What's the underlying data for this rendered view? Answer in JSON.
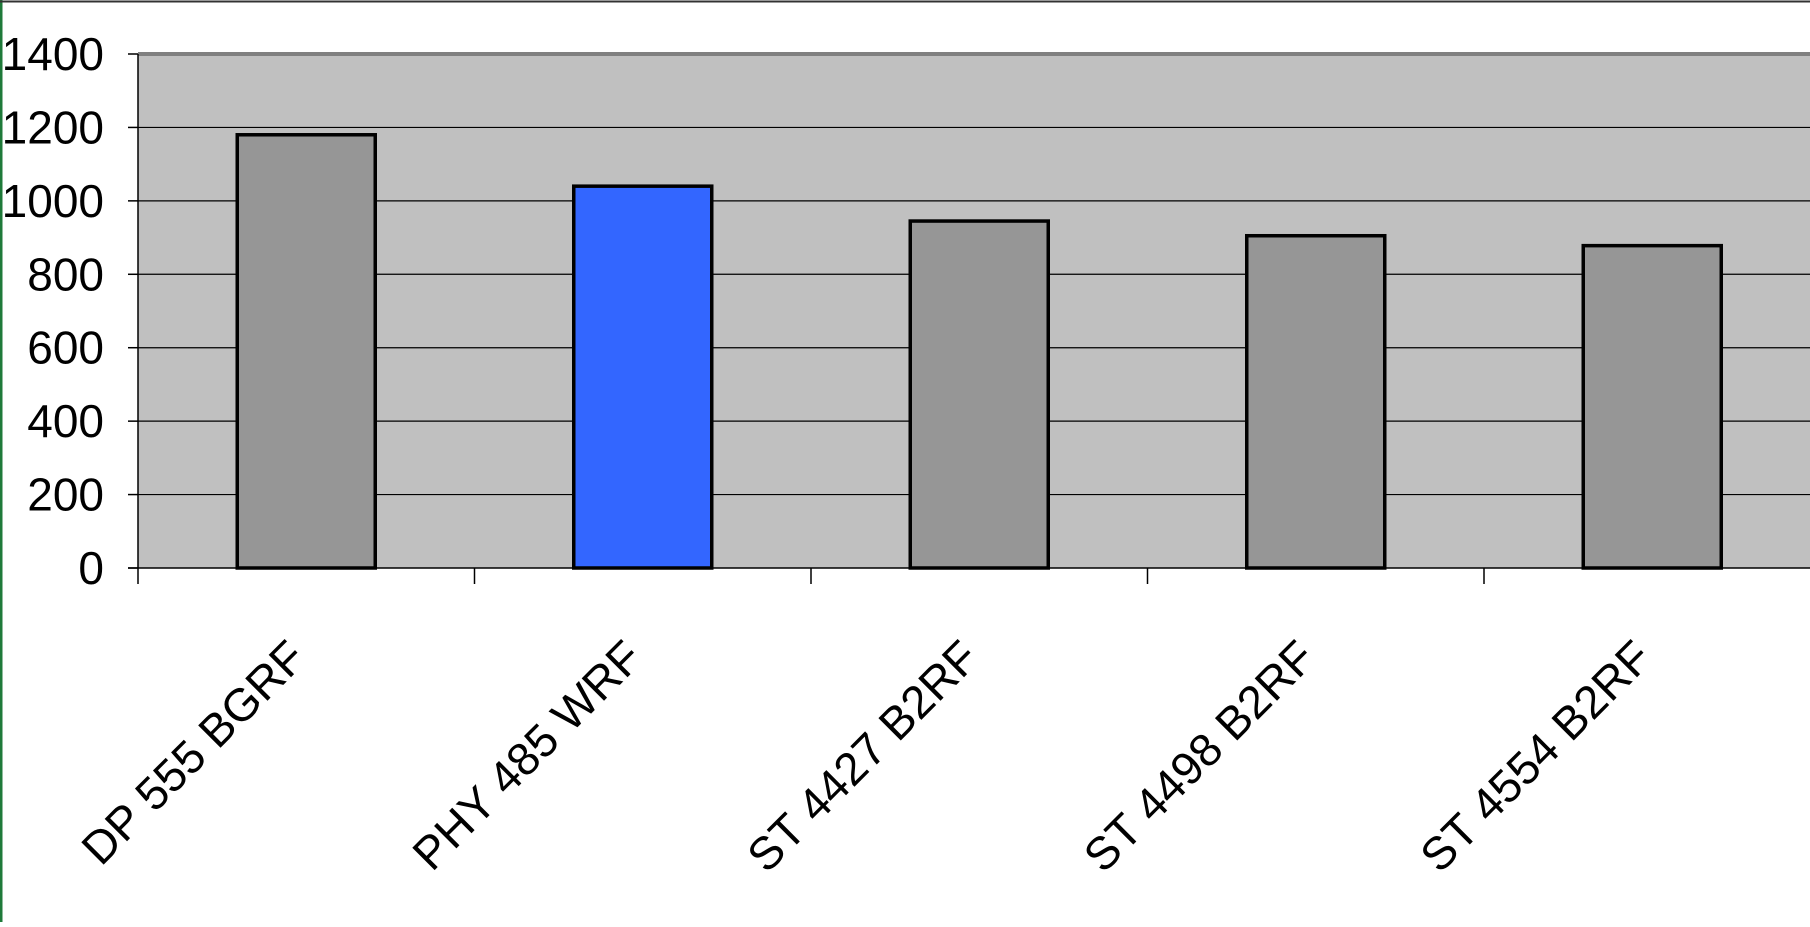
{
  "colors": {
    "plot_background": "#c0c0c0",
    "default_bar": "#969696",
    "highlight_bar": "#3366ff",
    "bar_outline": "#000000",
    "gridline": "#000000",
    "frame_green": "#1f7a3a"
  },
  "chart_data": {
    "type": "bar",
    "categories": [
      "DP 555 BGRF",
      "PHY 485 WRF",
      "ST 4427 B2RF",
      "ST 4498 B2RF",
      "ST 4554 B2RF"
    ],
    "series": [
      {
        "values": [
          1180,
          1040,
          945,
          905,
          878
        ]
      }
    ],
    "highlight_index": 1,
    "title": "",
    "xlabel": "",
    "ylabel": "",
    "ylim": [
      0,
      1400
    ],
    "yticks": [
      0,
      200,
      400,
      600,
      800,
      1000,
      1200,
      1400
    ],
    "grid": true,
    "legend": "none"
  }
}
